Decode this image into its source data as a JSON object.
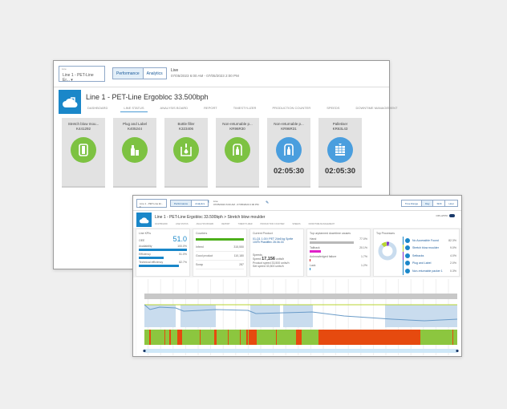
{
  "screen1": {
    "line_select": {
      "label": "Line",
      "value": "Line 1 - PET-Line Er..."
    },
    "view_toggle": [
      "Performance",
      "Analytics"
    ],
    "period": {
      "title": "Live",
      "range": "07/05/2023 6:00 AM - 07/05/2023 2:00 PM"
    },
    "page_title": "Line 1 - PET-Line Ergobloc 33.500bph",
    "nav": [
      "DASHBOARD",
      "LINE STATUS",
      "ANALYSIS BOARD",
      "REPORT",
      "TIMESTYLIZER",
      "PRODUCTION COUNTER",
      "SPEEDS",
      "DOWNTIME MANAGEMENT"
    ],
    "active_nav": "LINE STATUS",
    "machines": [
      {
        "name": "Stretch blow mou...",
        "id": "K441292",
        "status": "running",
        "color": "#7dc242",
        "icon": "stretch-blow-moulder-icon",
        "timer": ""
      },
      {
        "name": "Plug and Label",
        "id": "K405244",
        "status": "running",
        "color": "#7dc242",
        "icon": "bottles-icon",
        "timer": ""
      },
      {
        "name": "Bottle filler",
        "id": "K323406",
        "status": "running",
        "color": "#7dc242",
        "icon": "filler-icon",
        "timer": ""
      },
      {
        "name": "Non-returnable p...",
        "id": "KR96R30",
        "status": "running",
        "color": "#7dc242",
        "icon": "bottle-pack-icon",
        "timer": ""
      },
      {
        "name": "Non-returnable p...",
        "id": "KR96R31",
        "status": "idle",
        "color": "#4a9ede",
        "icon": "bottle-pack-icon",
        "timer": "02:05:30"
      },
      {
        "name": "Palletiser",
        "id": "KR63L43",
        "status": "idle",
        "color": "#4a9ede",
        "icon": "pallet-icon",
        "timer": "02:05:30"
      }
    ]
  },
  "screen2": {
    "line_select": {
      "value": "Line 1 - PET-Line Er..."
    },
    "view_toggle": [
      "Performance",
      "Analytics"
    ],
    "period": {
      "title": "Live",
      "range": "07/05/2023 6:00 AM - 07/05/2023 2:00 PM"
    },
    "range_buttons": [
      "Time Range",
      "Day",
      "Shift",
      "Hour"
    ],
    "active_range": "Day",
    "page_title": "Line 1 - PET-Line Ergobloc 33.500bph  >  Stretch blow moulder",
    "nav": [
      "DASHBOARD",
      "LINE STATUS",
      "ANALYSIS BOARD",
      "REPORT",
      "TIMESTYLIZER",
      "PRODUCTION COUNTER",
      "SPEEDS",
      "DOWNTIME MANAGEMENT"
    ],
    "kpis": {
      "title": "Line KPIs",
      "oee_label": "OEE",
      "oee": "51.0",
      "items": [
        {
          "label": "Availability",
          "value": "100.0%",
          "pct": 100
        },
        {
          "label": "Efficiency",
          "value": "51.0%",
          "pct": 51
        },
        {
          "label": "Technical efficiency",
          "value": "82.7%",
          "pct": 83
        }
      ]
    },
    "counters": {
      "title": "Counters",
      "rows": [
        {
          "label": "Infeed",
          "value": "315,550"
        },
        {
          "label": "Good product",
          "value": "110,180"
        },
        {
          "label": "Scrap",
          "value": "287"
        }
      ]
    },
    "product": {
      "title": "Current Product",
      "name": "01-Q1 1.00 l PET 24x6 kg Sprite 100% Plastiflex 28.06.33",
      "speeds_title": "Speeds",
      "speed_label": "Speed",
      "speed": "17,156",
      "speed_unit": "units/h",
      "product_speed": "Product speed 33,500 units/h",
      "set_speed": "Set speed 33,500 units/h"
    },
    "downtime": {
      "title": "Top unplanned downtime causes",
      "rows": [
        {
          "label": "Hand",
          "value": "77.0%",
          "pct": 77,
          "color": "#b8b8b8"
        },
        {
          "label": "Tailback",
          "value": "20.1%",
          "pct": 20,
          "color": "#e020c8"
        },
        {
          "label": "Acknowledged failure",
          "value": "1.7%",
          "pct": 2,
          "color": "#d02020"
        },
        {
          "label": "Lack",
          "value": "1.2%",
          "pct": 1,
          "color": "#1a87c9"
        }
      ]
    },
    "processes": {
      "title": "Top Processes",
      "rows": [
        {
          "label": "No Accessible Found",
          "value": "82.3%"
        },
        {
          "label": "Stretch blow moulder",
          "value": "9.0%"
        },
        {
          "label": "Setbacks",
          "value": "4.0%"
        },
        {
          "label": "Plug and Label",
          "value": "2.0%"
        },
        {
          "label": "Non-returnable packer 1",
          "value": "0.3%"
        }
      ]
    },
    "toggle_label": "OPL ATPO",
    "chart_colors": {
      "running": "#8cc63f",
      "stopped": "#e64a0f",
      "speed_band": "#c9dcee",
      "line": "#6a9bc8"
    }
  }
}
